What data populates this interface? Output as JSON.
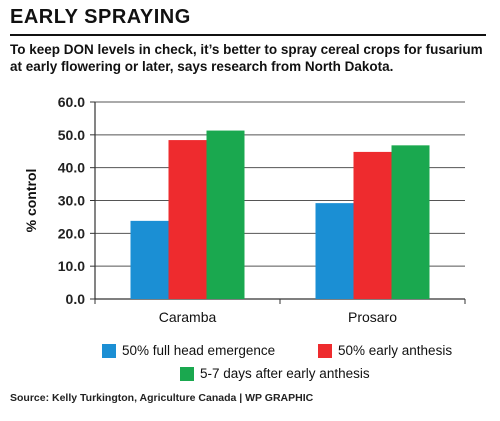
{
  "header": {
    "title": "EARLY SPRAYING",
    "subtitle": "To keep DON levels in check, it’s better to spray cereal crops for fusarium at early flowering or later, says research from North Dakota."
  },
  "chart_data": {
    "type": "bar",
    "categories": [
      "Caramba",
      "Prosaro"
    ],
    "series": [
      {
        "name": "50% full head emergence",
        "values": [
          23.8,
          29.2
        ],
        "color": "#1b8fd4"
      },
      {
        "name": "50% early anthesis",
        "values": [
          48.4,
          44.8
        ],
        "color": "#ee2b2e"
      },
      {
        "name": "5-7 days after early anthesis",
        "values": [
          51.3,
          46.8
        ],
        "color": "#1aa84f"
      }
    ],
    "ylabel": "% control",
    "ylim": [
      0,
      60
    ],
    "yticks": [
      "0.0",
      "10.0",
      "20.0",
      "30.0",
      "40.0",
      "50.0",
      "60.0"
    ],
    "grid": true,
    "legend_position": "bottom"
  },
  "footer": {
    "source": "Source: Kelly Turkington, Agriculture Canada | WP GRAPHIC"
  }
}
